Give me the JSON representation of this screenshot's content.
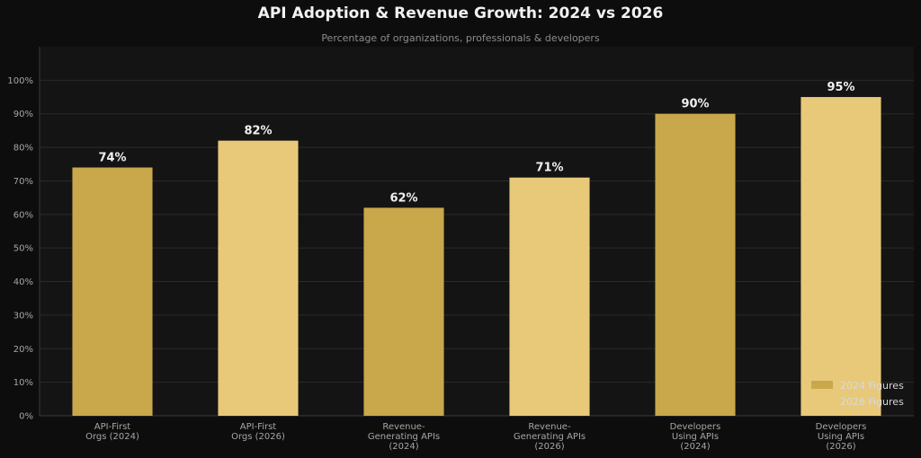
{
  "chart_data": {
    "type": "bar",
    "title": "API Adoption & Revenue Growth: 2024 vs 2026",
    "subtitle": "Percentage of organizations, professionals & developers",
    "categories": [
      [
        "API-First",
        "Orgs (2024)"
      ],
      [
        "API-First",
        "Orgs (2026)"
      ],
      [
        "Revenue-",
        "Generating APIs",
        "(2024)"
      ],
      [
        "Revenue-",
        "Generating APIs",
        "(2026)"
      ],
      [
        "Developers",
        "Using APIs",
        "(2024)"
      ],
      [
        "Developers",
        "Using APIs",
        "(2026)"
      ]
    ],
    "values": [
      74,
      82,
      62,
      71,
      90,
      95
    ],
    "value_labels": [
      "74%",
      "82%",
      "62%",
      "71%",
      "90%",
      "95%"
    ],
    "bar_series": [
      0,
      1,
      0,
      1,
      0,
      1
    ],
    "series": [
      {
        "name": "2024 Figures",
        "color": "#c8a84b"
      },
      {
        "name": "2026 Figures",
        "color": "#e8c97a"
      }
    ],
    "ylim": [
      0,
      110
    ],
    "yticks": [
      0,
      10,
      20,
      30,
      40,
      50,
      60,
      70,
      80,
      90,
      100
    ],
    "ytick_labels": [
      "0%",
      "10%",
      "20%",
      "30%",
      "40%",
      "50%",
      "60%",
      "70%",
      "80%",
      "90%",
      "100%"
    ],
    "grid": true,
    "legend_position": "bottom-right"
  }
}
